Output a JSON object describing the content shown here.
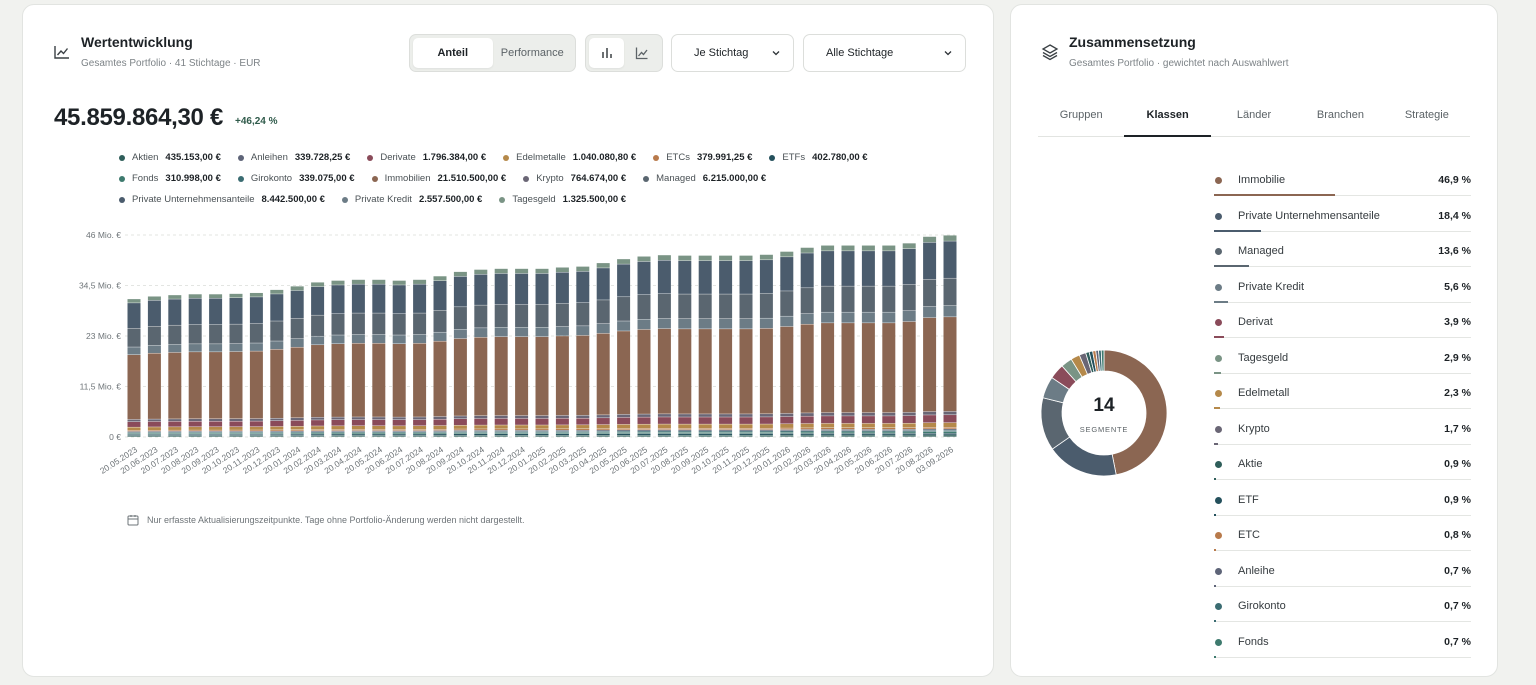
{
  "left": {
    "title": "Wertentwicklung",
    "subtitle": "Gesamtes Portfolio · 41 Stichtage · EUR",
    "mode_tabs": [
      "Anteil",
      "Performance"
    ],
    "mode_active": "Anteil",
    "chart_type_icons": [
      "bar-chart-icon",
      "line-chart-icon"
    ],
    "dropdown1": "Je Stichtag",
    "dropdown2": "Alle Stichtage",
    "total": "45.859.864,30 €",
    "delta": "+46,24 %",
    "note": "Nur erfasste Aktualisierungszeitpunkte. Tage ohne Portfolio-Änderung werden nicht dargestellt."
  },
  "legend": [
    {
      "name": "Aktien",
      "value": "435.153,00 €",
      "color": "#2f5e5a"
    },
    {
      "name": "Anleihen",
      "value": "339.728,25 €",
      "color": "#5e6478"
    },
    {
      "name": "Derivate",
      "value": "1.796.384,00 €",
      "color": "#8a4b5a"
    },
    {
      "name": "Edelmetalle",
      "value": "1.040.080,80 €",
      "color": "#b5894a"
    },
    {
      "name": "ETCs",
      "value": "379.991,25 €",
      "color": "#b87a4b"
    },
    {
      "name": "ETFs",
      "value": "402.780,00 €",
      "color": "#24505c"
    },
    {
      "name": "Fonds",
      "value": "310.998,00 €",
      "color": "#3e7a6e"
    },
    {
      "name": "Girokonto",
      "value": "339.075,00 €",
      "color": "#3b6c72"
    },
    {
      "name": "Immobilien",
      "value": "21.510.500,00 €",
      "color": "#8b6652"
    },
    {
      "name": "Krypto",
      "value": "764.674,00 €",
      "color": "#6a6675"
    },
    {
      "name": "Managed",
      "value": "6.215.000,00 €",
      "color": "#5a6670"
    },
    {
      "name": "Private Unternehmensanteile",
      "value": "8.442.500,00 €",
      "color": "#4b5c6d"
    },
    {
      "name": "Private Kredit",
      "value": "2.557.500,00 €",
      "color": "#6c7c86"
    },
    {
      "name": "Tagesgeld",
      "value": "1.325.500,00 €",
      "color": "#7a9485"
    }
  ],
  "chart_data": {
    "type": "bar",
    "stacked": true,
    "y_ticks": [
      "0 €",
      "11,5 Mio. €",
      "23 Mio. €",
      "34,5 Mio. €",
      "46 Mio. €"
    ],
    "ylim": [
      0,
      46
    ],
    "categories": [
      "20.05.2023",
      "20.06.2023",
      "20.07.2023",
      "20.08.2023",
      "20.09.2023",
      "20.10.2023",
      "20.11.2023",
      "20.12.2023",
      "20.01.2024",
      "20.02.2024",
      "20.03.2024",
      "20.04.2024",
      "20.05.2024",
      "20.06.2024",
      "20.07.2024",
      "20.08.2024",
      "20.09.2024",
      "20.10.2024",
      "20.11.2024",
      "20.12.2024",
      "20.01.2025",
      "20.02.2025",
      "20.03.2025",
      "20.04.2025",
      "20.05.2025",
      "20.06.2025",
      "20.07.2025",
      "20.08.2025",
      "20.09.2025",
      "20.10.2025",
      "20.11.2025",
      "20.12.2025",
      "20.01.2026",
      "20.02.2026",
      "20.03.2026",
      "20.04.2026",
      "20.05.2026",
      "20.06.2026",
      "20.07.2026",
      "20.08.2026",
      "03.09.2026"
    ],
    "totals": [
      31.4,
      32.0,
      32.3,
      32.5,
      32.5,
      32.6,
      32.8,
      33.5,
      34.3,
      35.2,
      35.6,
      35.8,
      35.8,
      35.6,
      35.8,
      36.6,
      37.6,
      38.1,
      38.3,
      38.3,
      38.3,
      38.6,
      38.8,
      39.6,
      40.5,
      41.1,
      41.4,
      41.3,
      41.3,
      41.3,
      41.3,
      41.5,
      42.2,
      43.1,
      43.6,
      43.6,
      43.6,
      43.6,
      44.1,
      45.6,
      45.9
    ]
  },
  "right": {
    "title": "Zusammensetzung",
    "subtitle": "Gesamtes Portfolio · gewichtet nach Auswahlwert",
    "tabs": [
      "Gruppen",
      "Klassen",
      "Länder",
      "Branchen",
      "Strategie"
    ],
    "tab_active": "Klassen",
    "donut_count": "14",
    "donut_label": "SEGMENTE",
    "allocation": [
      {
        "name": "Immobilie",
        "pct": "46,9 %",
        "value": 46.9,
        "color": "#8b6652"
      },
      {
        "name": "Private Unternehmensanteile",
        "pct": "18,4 %",
        "value": 18.4,
        "color": "#4b5c6d"
      },
      {
        "name": "Managed",
        "pct": "13,6 %",
        "value": 13.6,
        "color": "#5a6670"
      },
      {
        "name": "Private Kredit",
        "pct": "5,6 %",
        "value": 5.6,
        "color": "#6c7c86"
      },
      {
        "name": "Derivat",
        "pct": "3,9 %",
        "value": 3.9,
        "color": "#8a4b5a"
      },
      {
        "name": "Tagesgeld",
        "pct": "2,9 %",
        "value": 2.9,
        "color": "#7a9485"
      },
      {
        "name": "Edelmetall",
        "pct": "2,3 %",
        "value": 2.3,
        "color": "#b5894a"
      },
      {
        "name": "Krypto",
        "pct": "1,7 %",
        "value": 1.7,
        "color": "#6a6675"
      },
      {
        "name": "Aktie",
        "pct": "0,9 %",
        "value": 0.9,
        "color": "#2f5e5a"
      },
      {
        "name": "ETF",
        "pct": "0,9 %",
        "value": 0.9,
        "color": "#24505c"
      },
      {
        "name": "ETC",
        "pct": "0,8 %",
        "value": 0.8,
        "color": "#b87a4b"
      },
      {
        "name": "Anleihe",
        "pct": "0,7 %",
        "value": 0.7,
        "color": "#5e6478"
      },
      {
        "name": "Girokonto",
        "pct": "0,7 %",
        "value": 0.7,
        "color": "#3b6c72"
      },
      {
        "name": "Fonds",
        "pct": "0,7 %",
        "value": 0.7,
        "color": "#3e7a6e"
      }
    ]
  }
}
